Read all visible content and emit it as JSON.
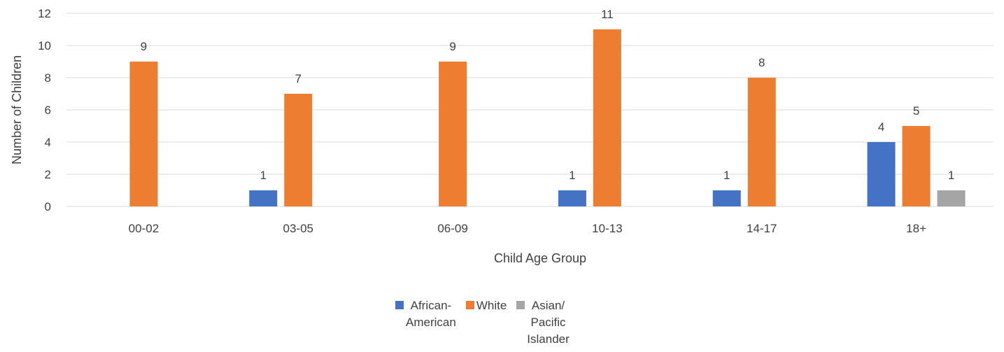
{
  "chart_data": {
    "type": "bar",
    "categories": [
      "00-02",
      "03-05",
      "06-09",
      "10-13",
      "14-17",
      "18+"
    ],
    "series": [
      {
        "name": "African-\nAmerican",
        "color": "#4472C4",
        "values": [
          0,
          1,
          0,
          1,
          1,
          4
        ]
      },
      {
        "name": "White",
        "color": "#ED7D31",
        "values": [
          9,
          7,
          9,
          11,
          8,
          5
        ]
      },
      {
        "name": "Asian/\nPacific\nIslander",
        "color": "#A5A5A5",
        "values": [
          0,
          0,
          0,
          0,
          0,
          1
        ]
      }
    ],
    "xlabel": "Child Age Group",
    "ylabel": "Number of Children",
    "ylim": [
      0,
      12
    ],
    "yticks": [
      0,
      2,
      4,
      6,
      8,
      10,
      12
    ],
    "grid": true,
    "legend_position": "bottom",
    "data_labels": true
  }
}
